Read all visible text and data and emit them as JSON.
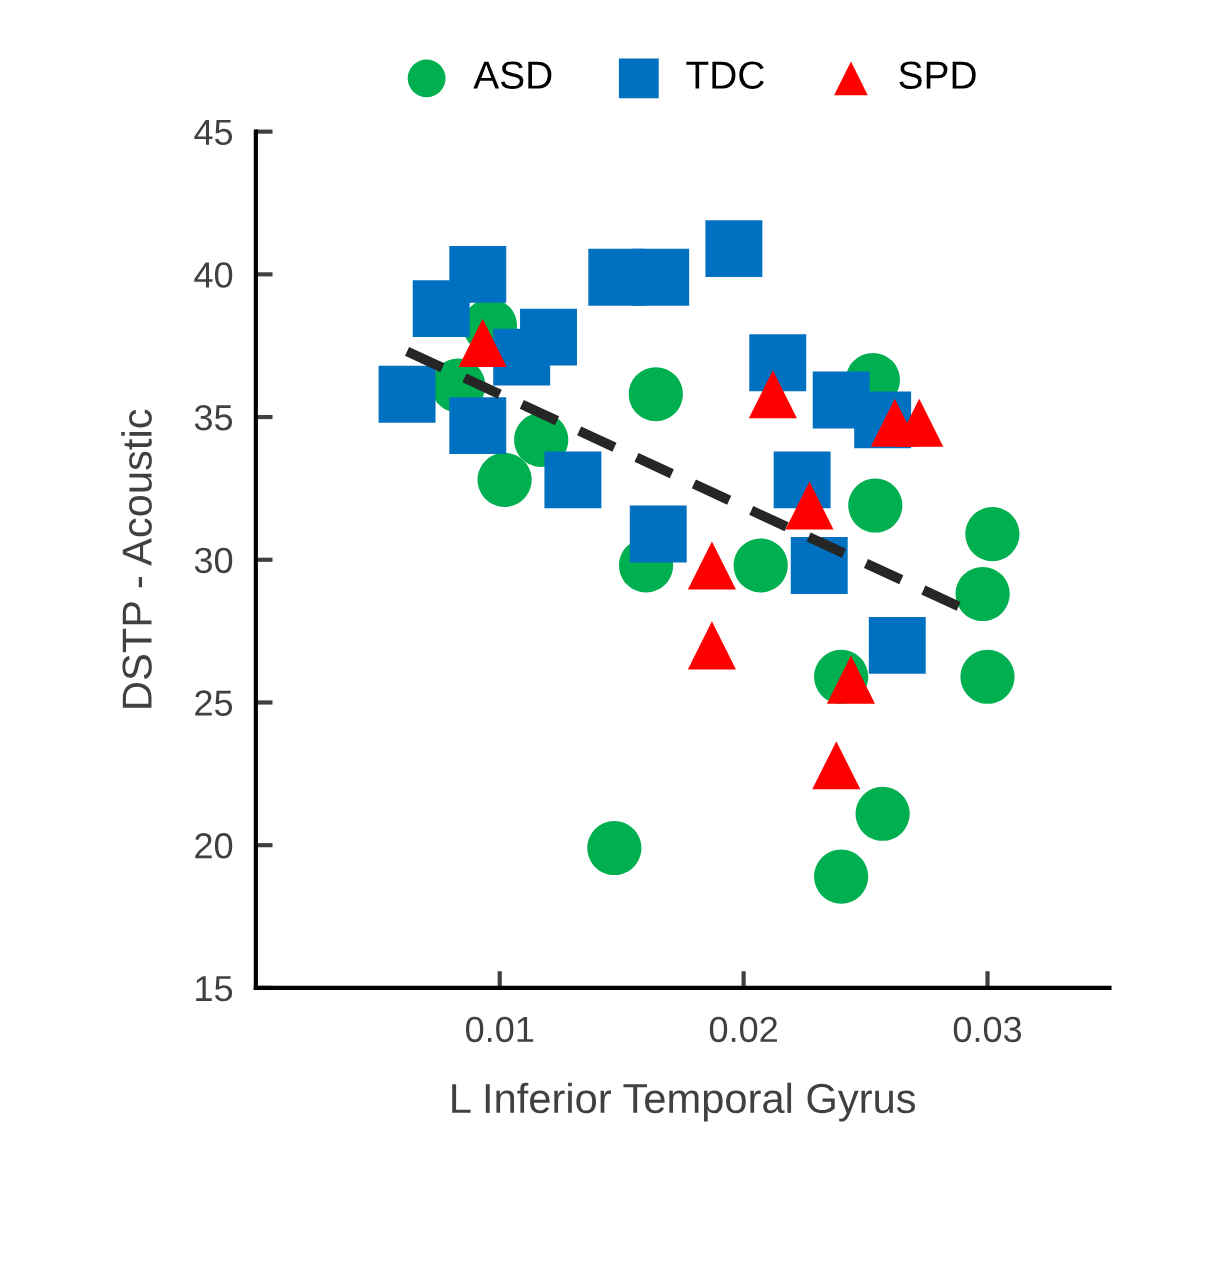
{
  "chart_data": {
    "type": "scatter",
    "xlabel": "L Inferior Temporal Gyrus",
    "ylabel": "DSTP - Acoustic",
    "xlim": [
      0,
      0.035
    ],
    "ylim": [
      15,
      45
    ],
    "xticks": [
      0.01,
      0.02,
      0.03
    ],
    "yticks": [
      15,
      20,
      25,
      30,
      35,
      40,
      45
    ],
    "grid": false,
    "legend": "top",
    "series": [
      {
        "name": "ASD",
        "color": "#00b050",
        "marker": "circle",
        "x": [
          0.0096,
          0.0083,
          0.0117,
          0.0102,
          0.0164,
          0.016,
          0.0207,
          0.0254,
          0.0302,
          0.0298,
          0.03,
          0.024,
          0.0257,
          0.0147,
          0.024,
          0.0253
        ],
        "values": [
          38.2,
          36.1,
          34.2,
          32.8,
          35.8,
          29.8,
          29.8,
          31.9,
          30.9,
          28.8,
          25.9,
          25.9,
          21.1,
          19.9,
          18.9,
          36.3
        ]
      },
      {
        "name": "TDC",
        "color": "#0070c0",
        "marker": "square",
        "x": [
          0.0091,
          0.0076,
          0.012,
          0.0109,
          0.0062,
          0.0091,
          0.013,
          0.0148,
          0.0166,
          0.0196,
          0.0214,
          0.024,
          0.0257,
          0.0224,
          0.0165,
          0.0231,
          0.0263
        ],
        "values": [
          40,
          38.8,
          37.8,
          37.1,
          35.8,
          34.7,
          32.8,
          39.9,
          39.9,
          40.9,
          36.9,
          35.6,
          34.9,
          32.8,
          30.9,
          29.8,
          27.0
        ]
      },
      {
        "name": "SPD",
        "color": "#ff0000",
        "marker": "triangle",
        "x": [
          0.0093,
          0.0212,
          0.0227,
          0.0262,
          0.0272,
          0.0187,
          0.0187,
          0.0244,
          0.0238
        ],
        "values": [
          37.6,
          35.8,
          31.9,
          34.8,
          34.8,
          29.8,
          27.0,
          25.8,
          22.8
        ]
      },
      {
        "type": "line",
        "color": "#262626",
        "line_style": "dashed",
        "x": [
          0.0062,
          0.0295
        ],
        "values": [
          37.3,
          28.1
        ]
      }
    ]
  }
}
